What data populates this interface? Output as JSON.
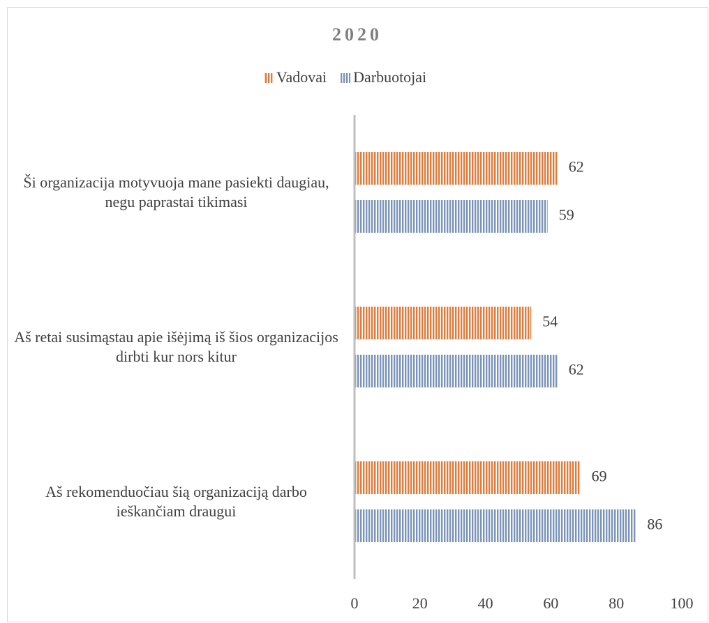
{
  "chart_data": {
    "type": "bar",
    "orientation": "horizontal",
    "title": "2020",
    "categories": [
      "Ši organizacija motyvuoja mane pasiekti daugiau, negu paprastai tikimasi",
      "Aš retai susimąstau apie išėjimą iš šios organizacijos dirbti kur nors kitur",
      "Aš rekomenduočiau šią organizaciją darbo ieškančiam draugui"
    ],
    "series": [
      {
        "name": "Vadovai",
        "color": "#e07b3c",
        "values": [
          62,
          54,
          69
        ]
      },
      {
        "name": "Darbuotojai",
        "color": "#7a93b8",
        "values": [
          59,
          62,
          86
        ]
      }
    ],
    "xlim": [
      0,
      100
    ],
    "xticks": [
      0,
      20,
      40,
      60,
      80,
      100
    ],
    "legend": "top",
    "grid": false
  }
}
